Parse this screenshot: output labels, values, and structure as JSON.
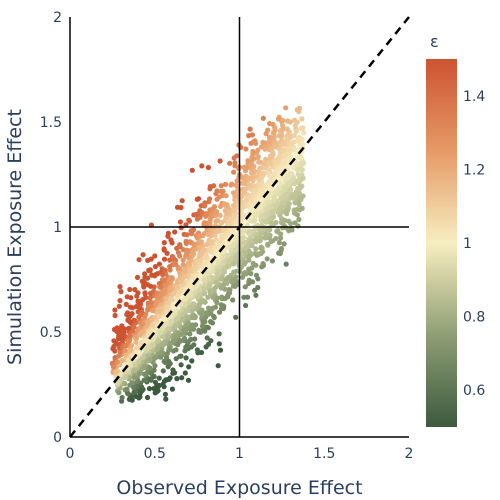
{
  "chart_data": {
    "type": "scatter",
    "title": "",
    "xlabel": "Observed Exposure Effect",
    "ylabel": "Simulation Exposure Effect",
    "xlim": [
      0,
      2
    ],
    "ylim": [
      0,
      2
    ],
    "x_ticks": [
      "0",
      "0.5",
      "1",
      "1.5",
      "2"
    ],
    "y_ticks": [
      "0",
      "0.5",
      "1",
      "1.5",
      "2"
    ],
    "grid": false,
    "reference_lines": [
      {
        "kind": "vertical",
        "x": 1
      },
      {
        "kind": "horizontal",
        "y": 1
      },
      {
        "kind": "diagonal-dashed",
        "from": [
          0,
          0
        ],
        "to": [
          2,
          2
        ]
      }
    ],
    "colorbar": {
      "title": "ε",
      "range": [
        0.5,
        1.5
      ],
      "ticks": [
        "0.6",
        "0.8",
        "1",
        "1.2",
        "1.4"
      ],
      "colorscale": [
        [
          0.0,
          "#3c5a3f"
        ],
        [
          0.25,
          "#8f9e74"
        ],
        [
          0.5,
          "#f7eec0"
        ],
        [
          0.75,
          "#e69a66"
        ],
        [
          1.0,
          "#cd5330"
        ]
      ]
    },
    "series": [
      {
        "description_points": "dense cloud; color = x/y ratio",
        "points": [
          [
            0.3,
            0.25
          ],
          [
            0.32,
            0.3
          ],
          [
            0.35,
            0.38
          ],
          [
            0.28,
            0.22
          ],
          [
            0.4,
            0.34
          ],
          [
            0.42,
            0.45
          ],
          [
            0.45,
            0.52
          ],
          [
            0.48,
            0.4
          ],
          [
            0.5,
            0.6
          ],
          [
            0.52,
            0.48
          ],
          [
            0.55,
            0.66
          ],
          [
            0.58,
            0.55
          ],
          [
            0.6,
            0.72
          ],
          [
            0.62,
            0.62
          ],
          [
            0.65,
            0.8
          ],
          [
            0.68,
            0.7
          ],
          [
            0.7,
            0.88
          ],
          [
            0.72,
            0.78
          ],
          [
            0.75,
            0.95
          ],
          [
            0.78,
            0.86
          ],
          [
            0.8,
            1.02
          ],
          [
            0.82,
            0.92
          ],
          [
            0.85,
            1.08
          ],
          [
            0.88,
            1.0
          ],
          [
            0.9,
            1.15
          ],
          [
            0.92,
            1.05
          ],
          [
            0.95,
            1.2
          ],
          [
            0.98,
            1.12
          ],
          [
            1.0,
            1.25
          ],
          [
            1.02,
            1.18
          ],
          [
            1.05,
            1.3
          ],
          [
            1.08,
            1.22
          ],
          [
            1.1,
            1.35
          ],
          [
            1.12,
            1.28
          ],
          [
            1.15,
            1.4
          ],
          [
            1.18,
            1.32
          ],
          [
            1.2,
            1.45
          ],
          [
            1.22,
            1.38
          ],
          [
            1.25,
            1.5
          ],
          [
            1.28,
            1.42
          ],
          [
            1.3,
            1.5
          ],
          [
            1.32,
            1.38
          ],
          [
            1.28,
            1.1
          ],
          [
            1.25,
            1.02
          ],
          [
            1.22,
            0.98
          ],
          [
            1.3,
            1.2
          ],
          [
            1.18,
            0.96
          ],
          [
            1.35,
            1.55
          ],
          [
            0.25,
            0.35
          ],
          [
            0.32,
            0.5
          ]
        ]
      }
    ]
  }
}
